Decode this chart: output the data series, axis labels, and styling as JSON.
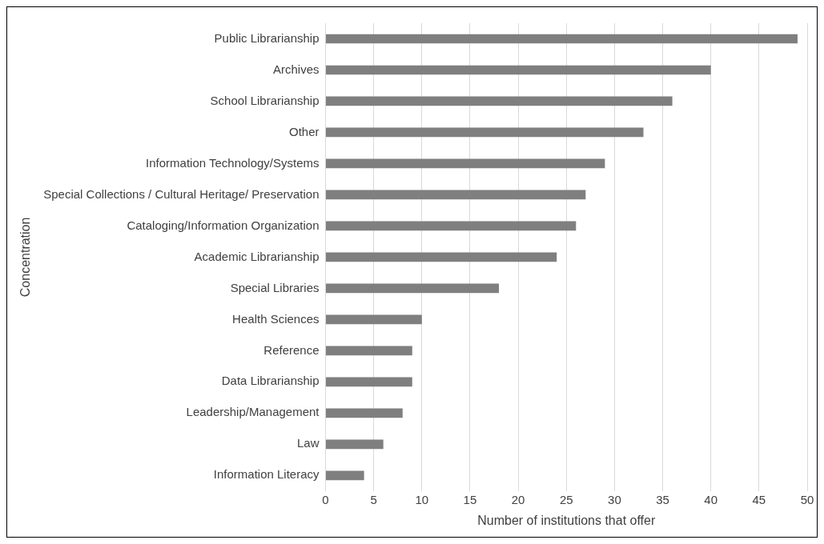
{
  "chart_data": {
    "type": "bar",
    "orientation": "horizontal",
    "xlabel": "Number of institutions that offer",
    "ylabel": "Concentration",
    "categories": [
      "Public Librarianship",
      "Archives",
      "School Librarianship",
      "Other",
      "Information Technology/Systems",
      "Special Collections / Cultural Heritage/ Preservation",
      "Cataloging/Information Organization",
      "Academic Librarianship",
      "Special Libraries",
      "Health Sciences",
      "Reference",
      "Data Librarianship",
      "Leadership/Management",
      "Law",
      "Information Literacy"
    ],
    "values": [
      49,
      40,
      36,
      33,
      29,
      27,
      26,
      24,
      18,
      10,
      9,
      9,
      8,
      6,
      4
    ],
    "color": "#7f7f7f",
    "xlim": [
      0,
      50
    ],
    "xticks": [
      0,
      5,
      10,
      15,
      20,
      25,
      30,
      35,
      40,
      45,
      50
    ],
    "grid": "x",
    "legend": false
  }
}
